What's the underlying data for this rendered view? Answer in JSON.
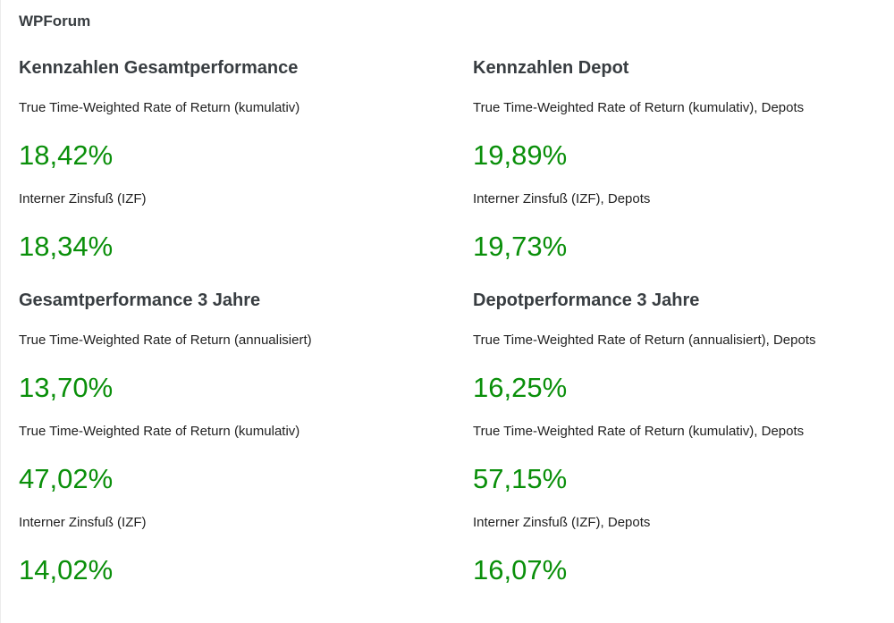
{
  "page": {
    "title": "WPForum"
  },
  "colors": {
    "value_green": "#0a8f0a",
    "heading": "#383d41",
    "label": "#1f1f1f"
  },
  "sections": [
    {
      "id": "kennzahlen-gesamtperformance",
      "heading": "Kennzahlen Gesamtperformance",
      "metrics": [
        {
          "label": "True Time-Weighted Rate of Return (kumulativ)",
          "value": "18,42%"
        },
        {
          "label": "Interner Zinsfuß (IZF)",
          "value": "18,34%"
        }
      ]
    },
    {
      "id": "kennzahlen-depot",
      "heading": "Kennzahlen Depot",
      "metrics": [
        {
          "label": "True Time-Weighted Rate of Return (kumulativ), Depots",
          "value": "19,89%"
        },
        {
          "label": "Interner Zinsfuß (IZF), Depots",
          "value": "19,73%"
        }
      ]
    },
    {
      "id": "gesamtperformance-3-jahre",
      "heading": "Gesamtperformance 3 Jahre",
      "metrics": [
        {
          "label": "True Time-Weighted Rate of Return (annualisiert)",
          "value": "13,70%"
        },
        {
          "label": "True Time-Weighted Rate of Return (kumulativ)",
          "value": "47,02%"
        },
        {
          "label": "Interner Zinsfuß (IZF)",
          "value": "14,02%"
        }
      ]
    },
    {
      "id": "depotperformance-3-jahre",
      "heading": "Depotperformance 3 Jahre",
      "metrics": [
        {
          "label": "True Time-Weighted Rate of Return (annualisiert), Depots",
          "value": "16,25%"
        },
        {
          "label": "True Time-Weighted Rate of Return (kumulativ), Depots",
          "value": "57,15%"
        },
        {
          "label": "Interner Zinsfuß (IZF), Depots",
          "value": "16,07%"
        }
      ]
    }
  ]
}
